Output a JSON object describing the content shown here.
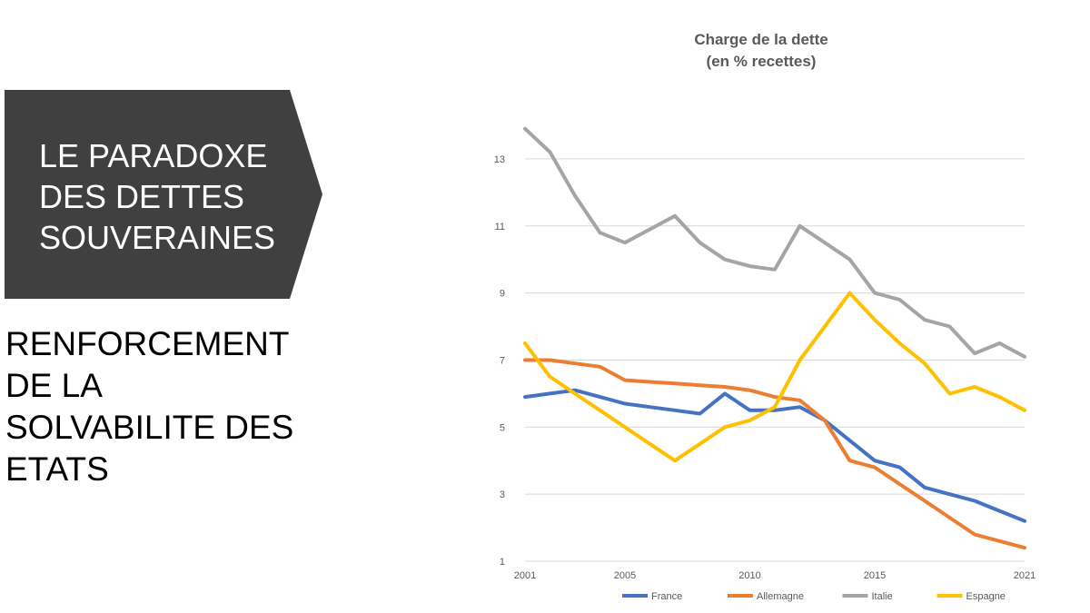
{
  "slide": {
    "banner_text": "LE PARADOXE DES DETTES SOUVERAINES",
    "subtitle": "RENFORCEMENT DE LA SOLVABILITE DES ETATS",
    "banner_color": "#404040"
  },
  "chart_data": {
    "type": "line",
    "title_lines": [
      "Charge de la dette",
      "(en % recettes)"
    ],
    "xlabel": "",
    "ylabel": "",
    "xlim": [
      2001,
      2021
    ],
    "ylim": [
      1,
      14
    ],
    "y_ticks": [
      1,
      3,
      5,
      7,
      9,
      11,
      13
    ],
    "x_ticks": [
      2001,
      2005,
      2010,
      2015,
      2021
    ],
    "grid": true,
    "legend_position": "bottom",
    "series": [
      {
        "name": "France",
        "color": "#4472C4",
        "points": [
          [
            2001,
            5.9
          ],
          [
            2002,
            6.0
          ],
          [
            2003,
            6.1
          ],
          [
            2004,
            5.9
          ],
          [
            2005,
            5.7
          ],
          [
            2006,
            5.6
          ],
          [
            2007,
            5.5
          ],
          [
            2008,
            5.4
          ],
          [
            2009,
            6.0
          ],
          [
            2010,
            5.5
          ],
          [
            2011,
            5.5
          ],
          [
            2012,
            5.6
          ],
          [
            2013,
            5.2
          ],
          [
            2014,
            4.6
          ],
          [
            2015,
            4.0
          ],
          [
            2016,
            3.8
          ],
          [
            2017,
            3.2
          ],
          [
            2018,
            3.0
          ],
          [
            2019,
            2.8
          ],
          [
            2020,
            2.5
          ],
          [
            2021,
            2.2
          ]
        ]
      },
      {
        "name": "Allemagne",
        "color": "#ED7D31",
        "points": [
          [
            2001,
            7.0
          ],
          [
            2002,
            7.0
          ],
          [
            2003,
            6.9
          ],
          [
            2004,
            6.8
          ],
          [
            2005,
            6.4
          ],
          [
            2006,
            6.35
          ],
          [
            2007,
            6.3
          ],
          [
            2008,
            6.25
          ],
          [
            2009,
            6.2
          ],
          [
            2010,
            6.1
          ],
          [
            2011,
            5.9
          ],
          [
            2012,
            5.8
          ],
          [
            2013,
            5.2
          ],
          [
            2014,
            4.0
          ],
          [
            2015,
            3.8
          ],
          [
            2016,
            3.3
          ],
          [
            2017,
            2.8
          ],
          [
            2018,
            2.3
          ],
          [
            2019,
            1.8
          ],
          [
            2020,
            1.6
          ],
          [
            2021,
            1.4
          ]
        ]
      },
      {
        "name": "Italie",
        "color": "#A5A5A5",
        "points": [
          [
            2001,
            13.9
          ],
          [
            2002,
            13.2
          ],
          [
            2003,
            11.9
          ],
          [
            2004,
            10.8
          ],
          [
            2005,
            10.5
          ],
          [
            2006,
            10.9
          ],
          [
            2007,
            11.3
          ],
          [
            2008,
            10.5
          ],
          [
            2009,
            10.0
          ],
          [
            2010,
            9.8
          ],
          [
            2011,
            9.7
          ],
          [
            2012,
            11.0
          ],
          [
            2013,
            10.5
          ],
          [
            2014,
            10.0
          ],
          [
            2015,
            9.0
          ],
          [
            2016,
            8.8
          ],
          [
            2017,
            8.2
          ],
          [
            2018,
            8.0
          ],
          [
            2019,
            7.2
          ],
          [
            2020,
            7.5
          ],
          [
            2021,
            7.1
          ]
        ]
      },
      {
        "name": "Espagne",
        "color": "#FFC000",
        "points": [
          [
            2001,
            7.5
          ],
          [
            2002,
            6.5
          ],
          [
            2003,
            6.0
          ],
          [
            2004,
            5.5
          ],
          [
            2005,
            5.0
          ],
          [
            2006,
            4.5
          ],
          [
            2007,
            4.0
          ],
          [
            2008,
            4.5
          ],
          [
            2009,
            5.0
          ],
          [
            2010,
            5.2
          ],
          [
            2011,
            5.6
          ],
          [
            2012,
            7.0
          ],
          [
            2013,
            8.0
          ],
          [
            2014,
            9.0
          ],
          [
            2015,
            8.2
          ],
          [
            2016,
            7.5
          ],
          [
            2017,
            6.9
          ],
          [
            2018,
            6.0
          ],
          [
            2019,
            6.2
          ],
          [
            2020,
            5.9
          ],
          [
            2021,
            5.5
          ]
        ]
      }
    ]
  }
}
